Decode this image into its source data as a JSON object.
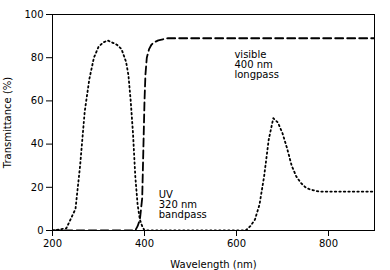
{
  "chart_data": {
    "type": "line",
    "xlabel": "Wavelength (nm)",
    "ylabel": "Transmittance (%)",
    "xlim": [
      200,
      900
    ],
    "ylim": [
      0,
      100
    ],
    "xticks": [
      200,
      400,
      600,
      800
    ],
    "yticks": [
      0,
      20,
      40,
      60,
      80,
      100
    ],
    "grid": false,
    "series": [
      {
        "color": "#000000",
        "line_style": "dotted",
        "x": [
          200,
          230,
          250,
          260,
          270,
          280,
          290,
          300,
          310,
          320,
          330,
          340,
          350,
          360,
          365,
          370,
          375,
          380,
          385,
          390,
          395,
          400,
          405,
          410,
          420,
          430,
          440,
          450,
          460,
          470,
          480,
          490,
          500,
          520,
          540,
          560,
          580,
          600,
          620,
          630,
          640,
          650,
          660,
          670,
          680,
          690,
          700,
          710,
          720,
          730,
          740,
          750,
          760,
          780,
          800,
          820,
          840,
          860,
          880,
          900
        ],
        "values": [
          0,
          1,
          10,
          30,
          55,
          70,
          80,
          85,
          87,
          88,
          87,
          86,
          84,
          78,
          72,
          60,
          45,
          25,
          12,
          5,
          2,
          0,
          0,
          0,
          0,
          0,
          0,
          0,
          0,
          0,
          0,
          0,
          0,
          0,
          0,
          0,
          0,
          0,
          0,
          2,
          5,
          12,
          25,
          42,
          52,
          50,
          45,
          38,
          30,
          25,
          22,
          20,
          19,
          18,
          18,
          18,
          18,
          18,
          18,
          18
        ]
      },
      {
        "color": "#000000",
        "line_style": "dashed",
        "x": [
          200,
          300,
          360,
          370,
          375,
          380,
          385,
          390,
          395,
          400,
          402,
          405,
          410,
          415,
          420,
          430,
          440,
          450,
          460,
          470,
          480,
          490,
          500,
          520,
          540,
          560,
          580,
          600,
          620,
          640,
          660,
          680,
          700,
          720,
          740,
          760,
          780,
          800,
          820,
          840,
          860,
          880,
          900
        ],
        "values": [
          0,
          0,
          0,
          0,
          0,
          0,
          2,
          5,
          15,
          60,
          72,
          80,
          84,
          86,
          87,
          88,
          88.5,
          89,
          89,
          89,
          89,
          89,
          89,
          89,
          89,
          89,
          89,
          89,
          89,
          89,
          89,
          89,
          89,
          89,
          89,
          89,
          89,
          89,
          89,
          89,
          89,
          89,
          89
        ]
      }
    ],
    "annotations": [
      "UV\n320 nm\nbandpass",
      "visible\n400 nm\nlongpass"
    ]
  }
}
